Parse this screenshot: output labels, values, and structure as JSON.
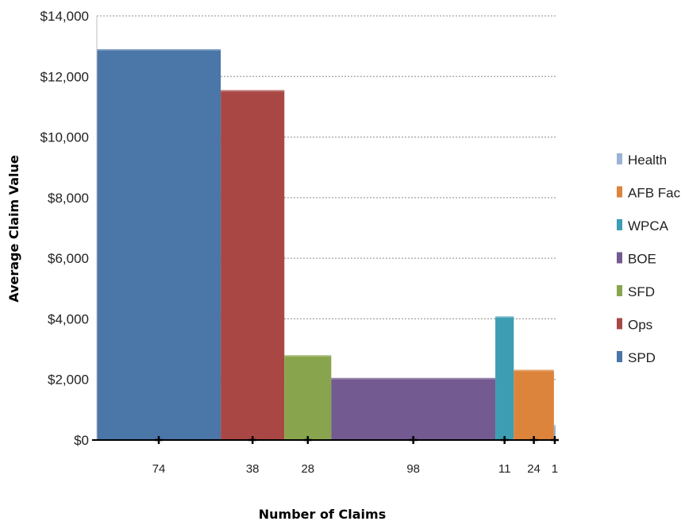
{
  "chart_data": {
    "type": "bar",
    "title": "",
    "xlabel": "Number of Claims",
    "ylabel": "Average Claim Value",
    "ylim": [
      0,
      14000
    ],
    "y_ticks": [
      "$0",
      "$2,000",
      "$4,000",
      "$6,000",
      "$8,000",
      "$10,000",
      "$12,000",
      "$14,000"
    ],
    "y_tick_values": [
      0,
      2000,
      4000,
      6000,
      8000,
      10000,
      12000,
      14000
    ],
    "grid": "horizontal dashed",
    "legend_position": "right",
    "series": [
      {
        "name": "SPD",
        "claims": 74,
        "value": 12900,
        "color": "#4a76a8"
      },
      {
        "name": "Ops",
        "claims": 38,
        "value": 11550,
        "color": "#a94744"
      },
      {
        "name": "SFD",
        "claims": 28,
        "value": 2800,
        "color": "#88a54e"
      },
      {
        "name": "BOE",
        "claims": 98,
        "value": 2050,
        "color": "#735a90"
      },
      {
        "name": "WPCA",
        "claims": 11,
        "value": 4080,
        "color": "#3c9db3"
      },
      {
        "name": "AFB Fac",
        "claims": 24,
        "value": 2320,
        "color": "#dc843c"
      },
      {
        "name": "Health",
        "claims": 1,
        "value": 500,
        "color": "#9cb2d6"
      }
    ],
    "legend_order": [
      "Health",
      "AFB Fac",
      "WPCA",
      "BOE",
      "SFD",
      "Ops",
      "SPD"
    ]
  }
}
